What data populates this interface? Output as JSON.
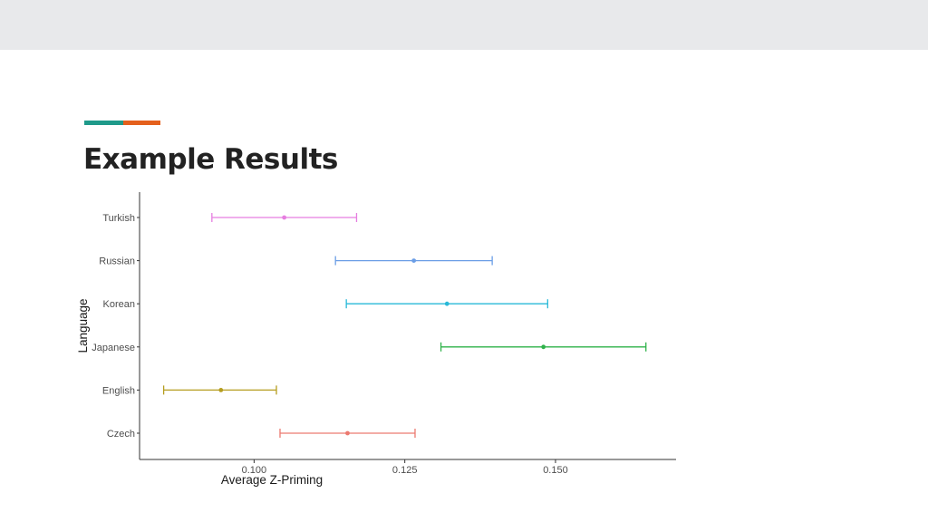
{
  "slide": {
    "title": "Example Results",
    "accent_colors": [
      "#1f9a8a",
      "#e4601d"
    ]
  },
  "chart_data": {
    "type": "scatter",
    "title": "",
    "xlabel": "Average Z-Priming",
    "ylabel": "Language",
    "xlim": [
      0.081,
      0.17
    ],
    "xticks": [
      0.1,
      0.125,
      0.15
    ],
    "xtick_labels": [
      "0.100",
      "0.125",
      "0.150"
    ],
    "grid": false,
    "legend": "none",
    "categories": [
      "Turkish",
      "Russian",
      "Korean",
      "Japanese",
      "English",
      "Czech"
    ],
    "series": [
      {
        "category": "Turkish",
        "mean": 0.105,
        "lower": 0.093,
        "upper": 0.117,
        "color": "#e67ee0"
      },
      {
        "category": "Russian",
        "mean": 0.1265,
        "lower": 0.1135,
        "upper": 0.1395,
        "color": "#6b9ee6"
      },
      {
        "category": "Korean",
        "mean": 0.132,
        "lower": 0.1153,
        "upper": 0.1487,
        "color": "#28b9d8"
      },
      {
        "category": "Japanese",
        "mean": 0.148,
        "lower": 0.131,
        "upper": 0.165,
        "color": "#2fb24a"
      },
      {
        "category": "English",
        "mean": 0.0945,
        "lower": 0.085,
        "upper": 0.1037,
        "color": "#b59d1f"
      },
      {
        "category": "Czech",
        "mean": 0.1155,
        "lower": 0.1043,
        "upper": 0.1267,
        "color": "#ec7a70"
      }
    ]
  }
}
